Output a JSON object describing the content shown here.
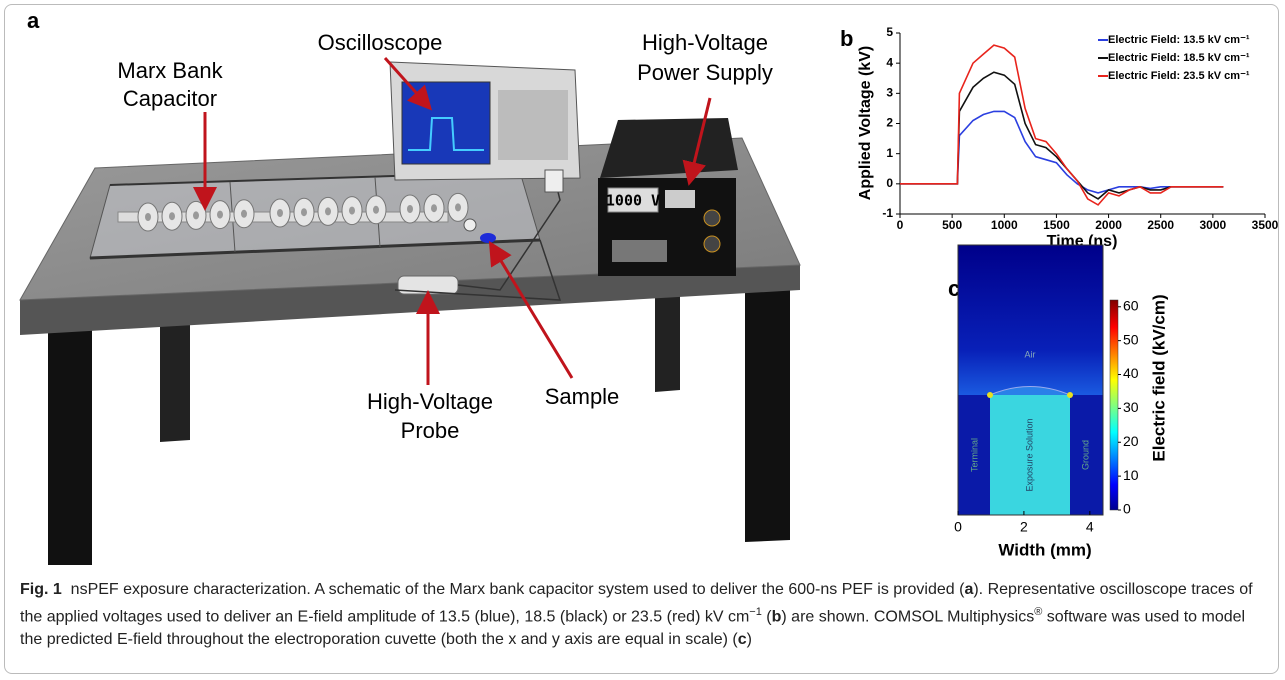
{
  "panel_a": {
    "label": "a",
    "oscilloscope": "Oscilloscope",
    "power_supply": [
      "High-Voltage",
      "Power Supply"
    ],
    "marx": [
      "Marx Bank",
      "Capacitor"
    ],
    "probe": [
      "High-Voltage",
      "Probe"
    ],
    "sample": "Sample",
    "display": "1000 V"
  },
  "chart_data": [
    {
      "type": "line",
      "panel_label": "b",
      "xlabel": "Time (ns)",
      "ylabel": "Applied Voltage (kV)",
      "x": [
        0,
        550,
        570,
        700,
        800,
        900,
        1000,
        1100,
        1200,
        1300,
        1400,
        1500,
        1600,
        1700,
        1800,
        1900,
        2000,
        2100,
        2200,
        2300,
        2400,
        2500,
        2600,
        2800,
        3000,
        3100
      ],
      "series": [
        {
          "name": "Electric Field: 13.5 kV cm⁻¹",
          "color": "#2b3fe0",
          "values": [
            0,
            0,
            1.6,
            2.1,
            2.3,
            2.4,
            2.4,
            2.2,
            1.4,
            0.9,
            0.8,
            0.7,
            0.3,
            0,
            -0.2,
            -0.3,
            -0.2,
            -0.1,
            -0.1,
            -0.1,
            -0.15,
            -0.1,
            -0.1,
            -0.1,
            -0.1,
            -0.1
          ]
        },
        {
          "name": "Electric Field: 18.5 kV cm⁻¹",
          "color": "#111111",
          "values": [
            0,
            0,
            2.4,
            3.2,
            3.5,
            3.7,
            3.6,
            3.3,
            2.0,
            1.3,
            1.2,
            0.9,
            0.5,
            0.1,
            -0.3,
            -0.5,
            -0.2,
            -0.3,
            -0.2,
            -0.1,
            -0.2,
            -0.2,
            -0.1,
            -0.1,
            -0.1,
            -0.1
          ]
        },
        {
          "name": "Electric Field: 23.5 kV cm⁻¹",
          "color": "#e8241c",
          "values": [
            0,
            0,
            3.0,
            4.0,
            4.3,
            4.6,
            4.5,
            4.2,
            2.5,
            1.5,
            1.4,
            1.0,
            0.5,
            0.1,
            -0.5,
            -0.7,
            -0.3,
            -0.4,
            -0.2,
            -0.1,
            -0.3,
            -0.3,
            -0.1,
            -0.1,
            -0.1,
            -0.1
          ]
        }
      ],
      "xlim": [
        0,
        3500
      ],
      "xticks": [
        0,
        500,
        1000,
        1500,
        2000,
        2500,
        3000,
        3500
      ],
      "ylim": [
        -1,
        5
      ],
      "yticks": [
        -1,
        0,
        1,
        2,
        3,
        4,
        5
      ],
      "legend": "upper right"
    },
    {
      "type": "heatmap",
      "panel_label": "c",
      "xlabel": "Width (mm)",
      "xlim": [
        0,
        4.4
      ],
      "xticks": [
        0,
        2,
        4
      ],
      "colorbar_label": "Electric field (kV/cm)",
      "clim": [
        0,
        62
      ],
      "cticks": [
        0,
        10,
        20,
        30,
        40,
        50,
        60
      ],
      "regions": [
        "Air",
        "Terminal",
        "Exposure Solution",
        "Ground"
      ]
    }
  ],
  "caption": {
    "runs": [
      {
        "text": "Fig. 1",
        "bold": true
      },
      {
        "text": "  nsPEF exposure characterization. A schematic of the Marx bank capacitor system used to deliver the 600-ns PEF is provided ("
      },
      {
        "text": "a",
        "bold": true
      },
      {
        "text": "). Representative oscilloscope traces of the applied voltages used to deliver an E-field amplitude of 13.5 (blue), 18.5 (black) or 23.5 (red) kV cm"
      },
      {
        "text": "−1",
        "sup": true
      },
      {
        "text": " ("
      },
      {
        "text": "b",
        "bold": true
      },
      {
        "text": ") are shown. COMSOL Multiphysics"
      },
      {
        "text": "®",
        "sup": true
      },
      {
        "text": " software was used to model the predicted E-field throughout the electroporation cuvette (both the x and y axis are equal in scale) ("
      },
      {
        "text": "c",
        "bold": true
      },
      {
        "text": ")"
      }
    ]
  }
}
